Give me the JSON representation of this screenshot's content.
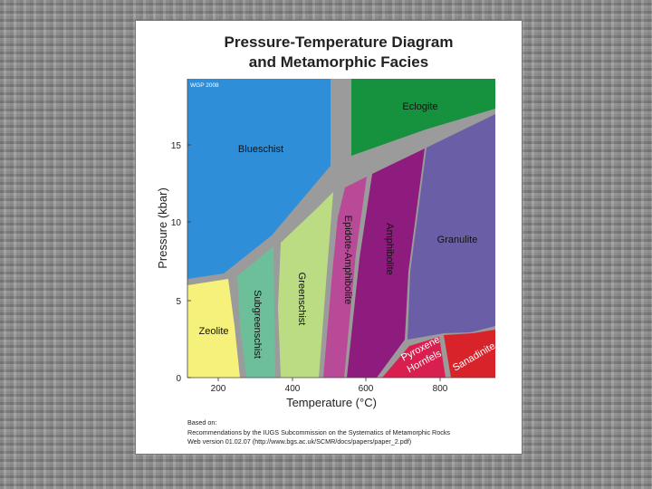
{
  "title": {
    "line1": "Pressure-Temperature Diagram",
    "line2": "and Metamorphic Facies"
  },
  "watermark": "WGP 2008",
  "axes": {
    "x_label": "Temperature (°C)",
    "y_label": "Pressure (kbar)",
    "x_ticks": [
      "200",
      "400",
      "600",
      "800"
    ],
    "y_ticks": [
      "0",
      "5",
      "10",
      "15"
    ]
  },
  "facies": {
    "blueschist": "Blueschist",
    "eclogite": "Eclogite",
    "granulite": "Granulite",
    "zeolite": "Zeolite",
    "subgreenschist": "Subgreenschist",
    "greenschist": "Greenschist",
    "epidote_amphibolite": "Epidote-Amphibolite",
    "amphibolite": "Amphibolite",
    "pyroxene": "Pyroxene",
    "hornfels": "Hornfels",
    "sanadinite": "Sanadinite"
  },
  "colors": {
    "blueschist": "#2e8fd8",
    "eclogite": "#16913e",
    "granulite": "#6a5fa6",
    "zeolite": "#f6f17a",
    "subgreenschist": "#6cbf99",
    "greenschist": "#bcdc84",
    "epidote_amphibolite": "#b84a98",
    "amphibolite": "#8e1c7e",
    "pyroxene_hornfels": "#d81f4f",
    "sanadinite": "#d8232a",
    "gap": "#9b9b9b"
  },
  "credits": {
    "line1": "Based on:",
    "line2": "Recommendations by the IUGS Subcommission on the Systematics of Metamorphic Rocks",
    "line3": "Web version 01.02.07 (http://www.bgs.ac.uk/SCMR/docs/papers/paper_2.pdf)"
  }
}
